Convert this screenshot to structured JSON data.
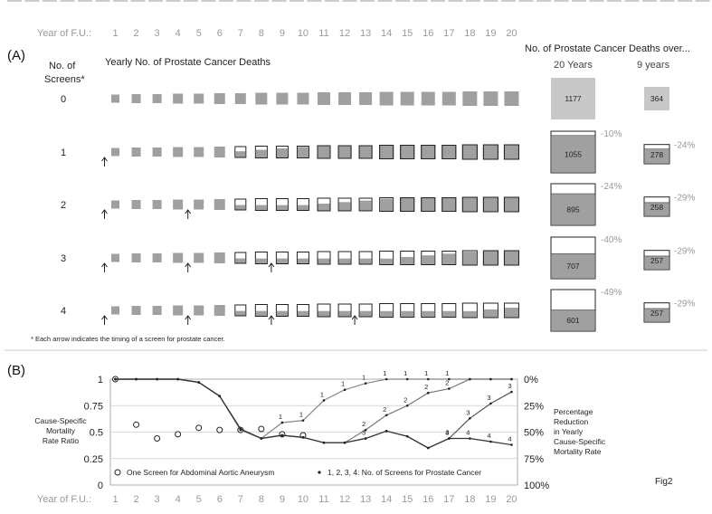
{
  "figure_label": "Fig2",
  "panel_a": {
    "label": "(A)",
    "year_header": "Year of F.U.:",
    "years": [
      "1",
      "2",
      "3",
      "4",
      "5",
      "6",
      "7",
      "8",
      "9",
      "10",
      "11",
      "12",
      "13",
      "14",
      "15",
      "16",
      "17",
      "18",
      "19",
      "20"
    ],
    "screens_header": "No. of Screens*",
    "yearly_title": "Yearly No. of Prostate Cancer Deaths",
    "totals_title": "No. of Prostate Cancer Deaths over...",
    "col_20_label": "20 Years",
    "col_9_label": "9 years",
    "footnote": "* Each arrow indicates the timing of a screen for prostate cancer.",
    "rows": [
      {
        "screens": "0",
        "screen_years": [],
        "deaths_20y": "1177",
        "reduction_20y": "",
        "deaths_9y": "364",
        "reduction_9y": "",
        "frac_20y": 1.0,
        "frac_9y": 1.0
      },
      {
        "screens": "1",
        "screen_years": [
          1
        ],
        "deaths_20y": "1055",
        "reduction_20y": "-10%",
        "deaths_9y": "278",
        "reduction_9y": "-24%",
        "frac_20y": 0.896,
        "frac_9y": 0.764
      },
      {
        "screens": "2",
        "screen_years": [
          1,
          5
        ],
        "deaths_20y": "895",
        "reduction_20y": "-24%",
        "deaths_9y": "258",
        "reduction_9y": "-29%",
        "frac_20y": 0.76,
        "frac_9y": 0.709
      },
      {
        "screens": "3",
        "screen_years": [
          1,
          5,
          9
        ],
        "deaths_20y": "707",
        "reduction_20y": "-40%",
        "deaths_9y": "257",
        "reduction_9y": "-29%",
        "frac_20y": 0.601,
        "frac_9y": 0.706
      },
      {
        "screens": "4",
        "screen_years": [
          1,
          5,
          9,
          13
        ],
        "deaths_20y": "601",
        "reduction_20y": "-49%",
        "deaths_9y": "257",
        "reduction_9y": "-29%",
        "frac_20y": 0.511,
        "frac_9y": 0.706
      }
    ],
    "colors": {
      "baseline": "#c8c8c8",
      "filled": "#a0a0a0",
      "outline": "#222222"
    }
  },
  "panel_b": {
    "label": "(B)",
    "left_axis_label": "Cause-Specific Mortality Rate Ratio",
    "right_axis_label": "Percentage Reduction in Yearly Cause-Specific Mortality Rate",
    "x_axis_label": "Year of F.U.:",
    "left_ticks": [
      "0",
      "0.25",
      "0.5",
      "0.75",
      "1"
    ],
    "right_ticks": [
      "100%",
      "75%",
      "50%",
      "25%",
      "0%"
    ],
    "legend_aaa": "One Screen for Abdominal Aortic Aneurysm",
    "legend_pc": "1, 2, 3, 4: No. of Screens for Prostate Cancer"
  },
  "chart_data": {
    "type": "line",
    "x": [
      1,
      2,
      3,
      4,
      5,
      6,
      7,
      8,
      9,
      10,
      11,
      12,
      13,
      14,
      15,
      16,
      17,
      18,
      19,
      20
    ],
    "xlabel": "Year of F.U.:",
    "ylabel": "Cause-Specific Mortality Rate Ratio",
    "ylim": [
      0,
      1
    ],
    "grid": true,
    "series": [
      {
        "name": "One Screen for Abdominal Aortic Aneurysm",
        "marker": "circle",
        "values": [
          1.0,
          0.57,
          0.44,
          0.48,
          0.54,
          0.52,
          0.52,
          0.53,
          0.48,
          0.47,
          null,
          null,
          null,
          null,
          null,
          null,
          null,
          null,
          null,
          null
        ]
      },
      {
        "name": "1",
        "marker": "dot",
        "values": [
          1.0,
          1.0,
          1.0,
          1.0,
          0.97,
          0.84,
          0.52,
          0.44,
          0.59,
          0.61,
          0.8,
          0.9,
          0.96,
          1.0,
          1.0,
          1.0,
          1.0,
          1.0,
          1.0,
          1.0
        ]
      },
      {
        "name": "2",
        "marker": "dot",
        "values": [
          1.0,
          1.0,
          1.0,
          1.0,
          0.97,
          0.84,
          0.53,
          0.44,
          0.47,
          0.45,
          0.4,
          0.4,
          0.52,
          0.66,
          0.75,
          0.87,
          0.91,
          1.0,
          1.0,
          1.0
        ]
      },
      {
        "name": "3",
        "marker": "dot",
        "values": [
          1.0,
          1.0,
          1.0,
          1.0,
          0.97,
          0.84,
          0.53,
          0.44,
          0.47,
          0.45,
          0.4,
          0.4,
          0.44,
          0.51,
          0.46,
          0.35,
          0.44,
          0.63,
          0.77,
          0.88
        ]
      },
      {
        "name": "4",
        "marker": "dot",
        "values": [
          1.0,
          1.0,
          1.0,
          1.0,
          0.97,
          0.84,
          0.53,
          0.44,
          0.47,
          0.45,
          0.4,
          0.4,
          0.44,
          0.51,
          0.46,
          0.35,
          0.44,
          0.44,
          0.41,
          0.38
        ]
      }
    ],
    "series_labels": [
      {
        "name": "1",
        "points": [
          9,
          10,
          11,
          12,
          13,
          14,
          15,
          16,
          17
        ]
      },
      {
        "name": "2",
        "points": [
          13,
          14,
          15,
          16,
          17
        ]
      },
      {
        "name": "3",
        "points": [
          13,
          17,
          18,
          19,
          20
        ]
      },
      {
        "name": "4",
        "points": [
          17,
          18,
          19,
          20
        ]
      }
    ]
  }
}
